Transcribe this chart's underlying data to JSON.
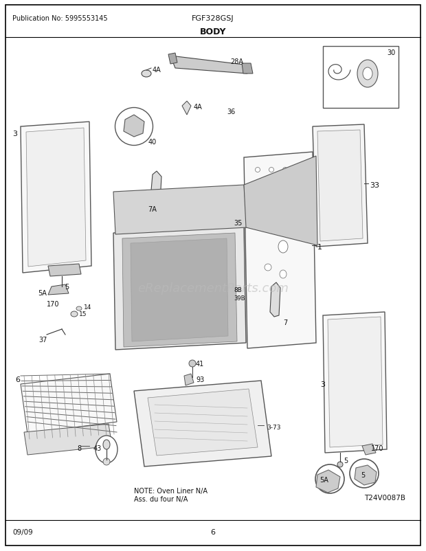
{
  "title": "BODY",
  "pub_no": "Publication No: 5995553145",
  "model": "FGF328GSJ",
  "date": "09/09",
  "page": "6",
  "diagram_id": "T24V0087B",
  "note_line1": "NOTE: Oven Liner N/A",
  "note_line2": "Ass. du four N/A",
  "bg_color": "#ffffff",
  "border_color": "#000000",
  "text_color": "#111111",
  "watermark_text": "eReplacementParts.com",
  "watermark_color": "#bbbbbb",
  "fig_width": 6.2,
  "fig_height": 8.03,
  "dpi": 100
}
